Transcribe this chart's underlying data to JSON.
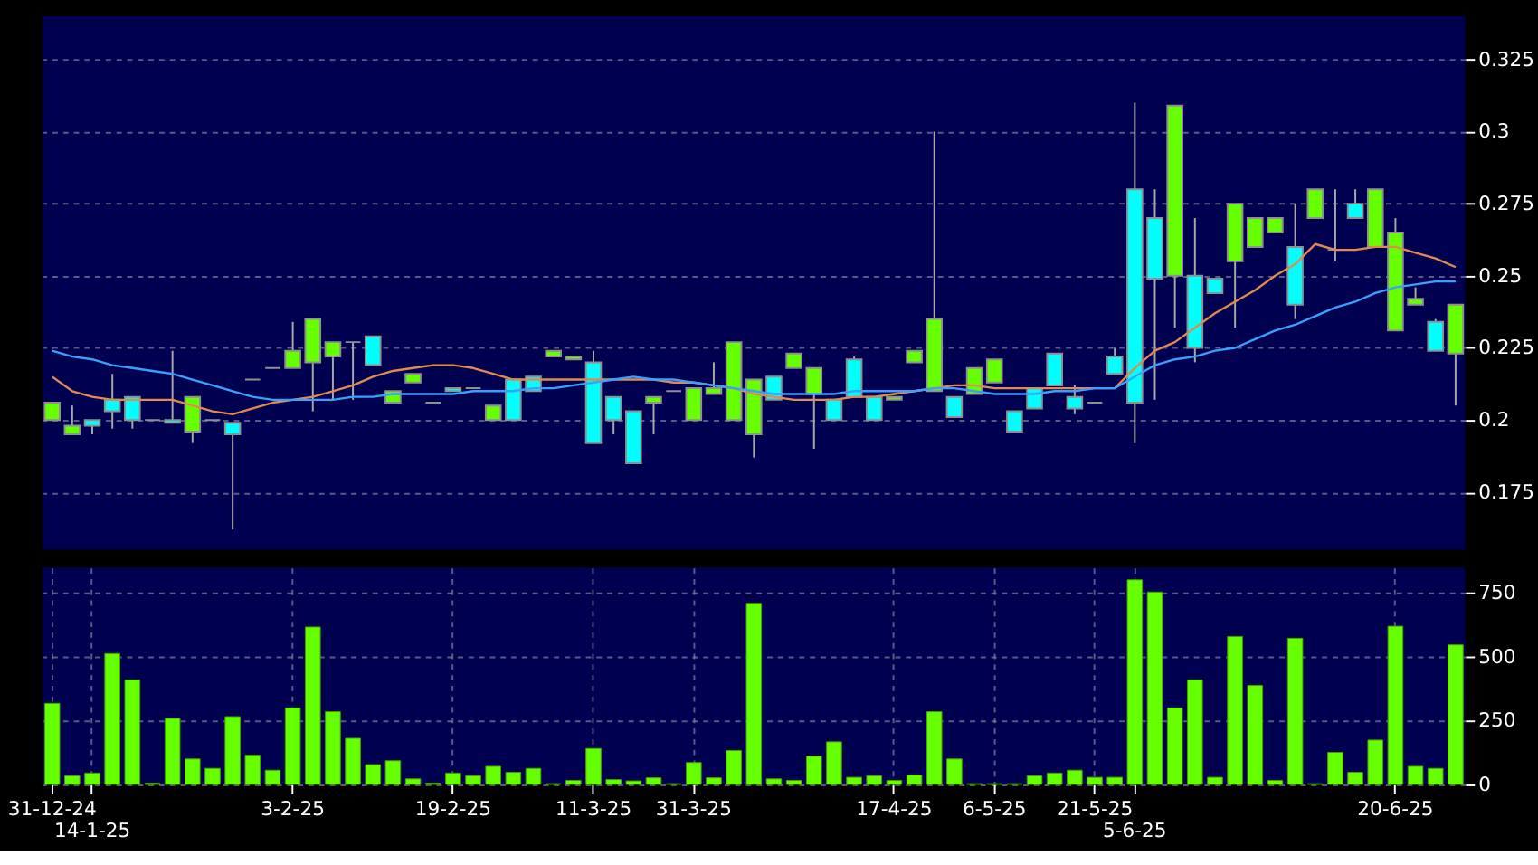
{
  "chart_data": [
    {
      "type": "candlestick",
      "categories": [
        null,
        null,
        null,
        null,
        null,
        null,
        null,
        null,
        null,
        null,
        null,
        null,
        null,
        null,
        null,
        null,
        null,
        null,
        null,
        null,
        null,
        null,
        null,
        null,
        null,
        null,
        null,
        null,
        null,
        null,
        null,
        null,
        null,
        null,
        null,
        null,
        null,
        null,
        null,
        null,
        null,
        null,
        null,
        null,
        null,
        null,
        null,
        null,
        null,
        null,
        null,
        null,
        null,
        null,
        null,
        null,
        null,
        null,
        null,
        null,
        null,
        null,
        null,
        null,
        null,
        null,
        null,
        null,
        null,
        null,
        null
      ],
      "ohlc": [
        [
          0.206,
          0.206,
          0.2,
          0.2
        ],
        [
          0.198,
          0.205,
          0.195,
          0.195
        ],
        [
          0.198,
          0.2,
          0.195,
          0.2
        ],
        [
          0.203,
          0.216,
          0.197,
          0.207
        ],
        [
          0.2,
          0.208,
          0.197,
          0.208
        ],
        [
          0.2,
          0.2,
          0.2,
          0.2
        ],
        [
          0.199,
          0.224,
          0.199,
          0.2
        ],
        [
          0.208,
          0.208,
          0.192,
          0.196
        ],
        [
          0.2,
          0.2,
          0.2,
          0.2
        ],
        [
          0.195,
          0.199,
          0.162,
          0.199
        ],
        [
          0.214,
          0.214,
          0.214,
          0.214
        ],
        [
          0.218,
          0.218,
          0.218,
          0.218
        ],
        [
          0.224,
          0.234,
          0.218,
          0.218
        ],
        [
          0.235,
          0.235,
          0.203,
          0.22
        ],
        [
          0.227,
          0.227,
          0.207,
          0.222
        ],
        [
          0.227,
          0.227,
          0.207,
          0.227
        ],
        [
          0.219,
          0.229,
          0.219,
          0.229
        ],
        [
          0.21,
          0.21,
          0.206,
          0.206
        ],
        [
          0.216,
          0.216,
          0.213,
          0.213
        ],
        [
          0.206,
          0.206,
          0.206,
          0.206
        ],
        [
          0.21,
          0.211,
          0.21,
          0.211
        ],
        [
          0.211,
          0.211,
          0.211,
          0.211
        ],
        [
          0.205,
          0.205,
          0.2,
          0.2
        ],
        [
          0.2,
          0.214,
          0.2,
          0.214
        ],
        [
          0.21,
          0.215,
          0.21,
          0.215
        ],
        [
          0.224,
          0.224,
          0.222,
          0.222
        ],
        [
          0.222,
          0.222,
          0.221,
          0.221
        ],
        [
          0.192,
          0.224,
          0.192,
          0.22
        ],
        [
          0.2,
          0.208,
          0.195,
          0.208
        ],
        [
          0.185,
          0.203,
          0.185,
          0.203
        ],
        [
          0.208,
          0.208,
          0.195,
          0.206
        ],
        [
          0.21,
          0.21,
          0.21,
          0.21
        ],
        [
          0.211,
          0.211,
          0.2,
          0.2
        ],
        [
          0.211,
          0.22,
          0.209,
          0.209
        ],
        [
          0.227,
          0.227,
          0.2,
          0.2
        ],
        [
          0.214,
          0.214,
          0.187,
          0.195
        ],
        [
          0.207,
          0.215,
          0.207,
          0.215
        ],
        [
          0.223,
          0.223,
          0.218,
          0.218
        ],
        [
          0.218,
          0.218,
          0.19,
          0.209
        ],
        [
          0.2,
          0.207,
          0.2,
          0.207
        ],
        [
          0.208,
          0.222,
          0.208,
          0.221
        ],
        [
          0.2,
          0.208,
          0.2,
          0.208
        ],
        [
          0.208,
          0.208,
          0.207,
          0.207
        ],
        [
          0.224,
          0.224,
          0.22,
          0.22
        ],
        [
          0.235,
          0.3,
          0.21,
          0.21
        ],
        [
          0.201,
          0.208,
          0.201,
          0.208
        ],
        [
          0.218,
          0.218,
          0.209,
          0.209
        ],
        [
          0.221,
          0.221,
          0.213,
          0.213
        ],
        [
          0.196,
          0.203,
          0.196,
          0.203
        ],
        [
          0.204,
          0.211,
          0.204,
          0.211
        ],
        [
          0.212,
          0.223,
          0.212,
          0.223
        ],
        [
          0.204,
          0.212,
          0.202,
          0.208
        ],
        [
          0.206,
          0.206,
          0.206,
          0.206
        ],
        [
          0.216,
          0.225,
          0.216,
          0.222
        ],
        [
          0.206,
          0.31,
          0.192,
          0.28
        ],
        [
          0.249,
          0.28,
          0.207,
          0.27
        ],
        [
          0.309,
          0.309,
          0.232,
          0.25
        ],
        [
          0.225,
          0.27,
          0.22,
          0.25
        ],
        [
          0.244,
          0.249,
          0.244,
          0.249
        ],
        [
          0.275,
          0.275,
          0.232,
          0.255
        ],
        [
          0.27,
          0.27,
          0.26,
          0.26
        ],
        [
          0.27,
          0.27,
          0.265,
          0.265
        ],
        [
          0.24,
          0.275,
          0.235,
          0.26
        ],
        [
          0.28,
          0.28,
          0.27,
          0.27
        ],
        [
          0.259,
          0.28,
          0.255,
          0.259
        ],
        [
          0.27,
          0.28,
          0.27,
          0.275
        ],
        [
          0.28,
          0.28,
          0.26,
          0.26
        ],
        [
          0.265,
          0.27,
          0.231,
          0.231
        ],
        [
          0.242,
          0.246,
          0.24,
          0.24
        ],
        [
          0.224,
          0.235,
          0.224,
          0.234
        ],
        [
          0.24,
          0.24,
          0.205,
          0.223
        ]
      ],
      "colors": [
        "#66ff00",
        "#66ff00",
        "#00ffff",
        "#00ffff",
        "#00ffff",
        "#a0a0a0",
        "#00ffff",
        "#66ff00",
        "#a0a0a0",
        "#00ffff",
        "#a0a0a0",
        "#a0a0a0",
        "#66ff00",
        "#66ff00",
        "#66ff00",
        "#a0a0a0",
        "#00ffff",
        "#66ff00",
        "#66ff00",
        "#a0a0a0",
        "#00ffff",
        "#a0a0a0",
        "#66ff00",
        "#00ffff",
        "#00ffff",
        "#66ff00",
        "#66ff00",
        "#00ffff",
        "#00ffff",
        "#00ffff",
        "#66ff00",
        "#a0a0a0",
        "#66ff00",
        "#66ff00",
        "#66ff00",
        "#66ff00",
        "#00ffff",
        "#66ff00",
        "#66ff00",
        "#00ffff",
        "#00ffff",
        "#00ffff",
        "#66ff00",
        "#66ff00",
        "#66ff00",
        "#00ffff",
        "#66ff00",
        "#66ff00",
        "#00ffff",
        "#00ffff",
        "#00ffff",
        "#00ffff",
        "#a0a0a0",
        "#00ffff",
        "#00ffff",
        "#00ffff",
        "#66ff00",
        "#00ffff",
        "#00ffff",
        "#66ff00",
        "#66ff00",
        "#66ff00",
        "#00ffff",
        "#66ff00",
        "#a0a0a0",
        "#00ffff",
        "#66ff00",
        "#66ff00",
        "#66ff00",
        "#00ffff",
        "#66ff00"
      ],
      "series": [
        {
          "type": "line",
          "color": "#e08a50",
          "values": [
            0.215,
            0.21,
            0.208,
            0.207,
            0.207,
            0.207,
            0.207,
            0.205,
            0.203,
            0.202,
            0.204,
            0.206,
            0.207,
            0.208,
            0.21,
            0.212,
            0.215,
            0.217,
            0.218,
            0.219,
            0.219,
            0.218,
            0.216,
            0.214,
            0.214,
            0.214,
            0.214,
            0.214,
            0.214,
            0.214,
            0.214,
            0.213,
            0.213,
            0.212,
            0.211,
            0.209,
            0.208,
            0.207,
            0.207,
            0.207,
            0.208,
            0.208,
            0.209,
            0.21,
            0.211,
            0.212,
            0.212,
            0.211,
            0.211,
            0.211,
            0.211,
            0.211,
            0.211,
            0.211,
            0.218,
            0.224,
            0.227,
            0.232,
            0.237,
            0.241,
            0.245,
            0.25,
            0.254,
            0.261,
            0.259,
            0.259,
            0.26,
            0.26,
            0.258,
            0.256,
            0.253
          ]
        },
        {
          "type": "line",
          "color": "#3aa0ff",
          "values": [
            0.224,
            0.222,
            0.221,
            0.219,
            0.218,
            0.217,
            0.216,
            0.214,
            0.212,
            0.21,
            0.208,
            0.207,
            0.207,
            0.207,
            0.207,
            0.208,
            0.208,
            0.209,
            0.209,
            0.209,
            0.209,
            0.21,
            0.21,
            0.21,
            0.211,
            0.211,
            0.212,
            0.213,
            0.214,
            0.215,
            0.214,
            0.214,
            0.213,
            0.212,
            0.211,
            0.21,
            0.209,
            0.209,
            0.209,
            0.209,
            0.21,
            0.21,
            0.21,
            0.21,
            0.211,
            0.211,
            0.21,
            0.209,
            0.209,
            0.209,
            0.21,
            0.21,
            0.211,
            0.211,
            0.215,
            0.219,
            0.221,
            0.222,
            0.224,
            0.225,
            0.228,
            0.231,
            0.233,
            0.236,
            0.239,
            0.241,
            0.244,
            0.246,
            0.247,
            0.248,
            0.248
          ]
        }
      ],
      "ylim": [
        0.155,
        0.34
      ],
      "yticks": [
        0.175,
        0.2,
        0.225,
        0.25,
        0.275,
        0.3,
        0.325
      ],
      "grid": true,
      "tick_labels": "y"
    },
    {
      "type": "bar",
      "categories": [
        "31-12-24",
        null,
        "14-1-25",
        null,
        null,
        null,
        null,
        null,
        null,
        null,
        null,
        null,
        "3-2-25",
        null,
        null,
        null,
        null,
        null,
        null,
        null,
        "19-2-25",
        null,
        null,
        null,
        null,
        null,
        null,
        "11-3-25",
        null,
        null,
        null,
        null,
        "31-3-25",
        null,
        null,
        null,
        null,
        null,
        null,
        null,
        null,
        null,
        "17-4-25",
        null,
        null,
        null,
        null,
        "6-5-25",
        null,
        null,
        null,
        null,
        "21-5-25",
        null,
        "5-6-25",
        null,
        null,
        null,
        null,
        null,
        null,
        null,
        null,
        null,
        null,
        null,
        null,
        "20-6-25",
        null,
        null,
        null
      ],
      "values": [
        318,
        34,
        45,
        513,
        410,
        5,
        259,
        100,
        63,
        266,
        115,
        56,
        300,
        617,
        285,
        181,
        78,
        93,
        22,
        5,
        45,
        34,
        71,
        48,
        63,
        3,
        16,
        141,
        19,
        14,
        26,
        3,
        86,
        26,
        133,
        710,
        22,
        16,
        111,
        167,
        28,
        34,
        16,
        37,
        285,
        100,
        3,
        3,
        3,
        34,
        45,
        56,
        28,
        28,
        802,
        754,
        300,
        410,
        28,
        580,
        388,
        16,
        573,
        3,
        126,
        48,
        174,
        620,
        71,
        63,
        547
      ],
      "color": "#66ff00",
      "ylim": [
        0,
        850
      ],
      "yticks": [
        0,
        250,
        500,
        750
      ],
      "grid": true
    }
  ]
}
